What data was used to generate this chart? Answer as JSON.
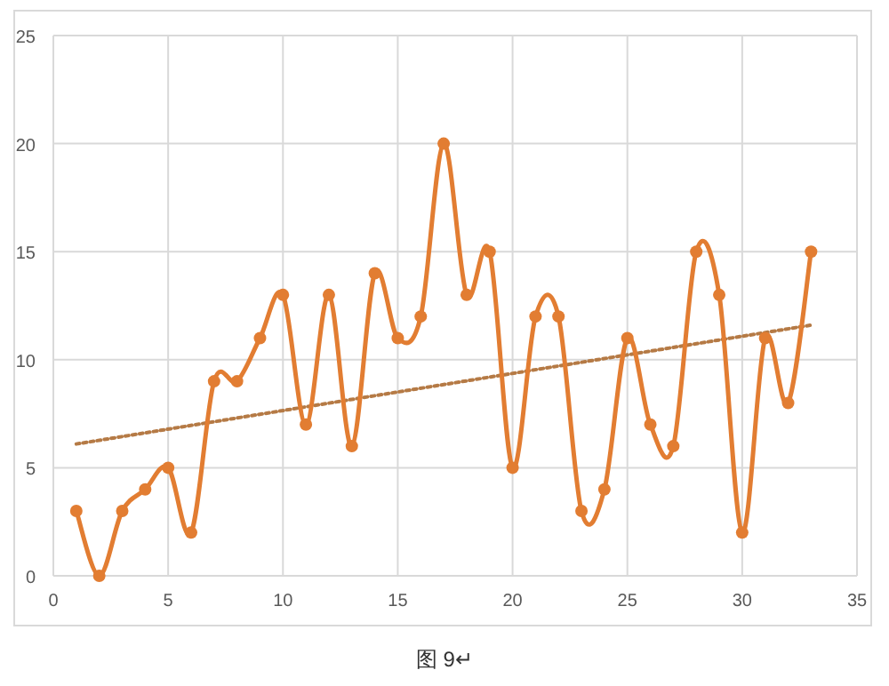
{
  "chart_data": {
    "type": "line",
    "annotations": [
      "图 9↵"
    ],
    "x": [
      1,
      2,
      3,
      4,
      5,
      6,
      7,
      8,
      9,
      10,
      11,
      12,
      13,
      14,
      15,
      16,
      17,
      18,
      19,
      20,
      21,
      22,
      23,
      24,
      25,
      26,
      27,
      28,
      29,
      30,
      31,
      32,
      33
    ],
    "series": [
      {
        "color": "#e27d32",
        "values": [
          3,
          0,
          3,
          4,
          5,
          2,
          9,
          9,
          11,
          13,
          7,
          13,
          6,
          14,
          11,
          12,
          20,
          13,
          15,
          5,
          12,
          12,
          3,
          4,
          11,
          7,
          6,
          15,
          13,
          2,
          11,
          8,
          15
        ]
      },
      {
        "color": "#b57a45",
        "x": [
          1,
          33
        ],
        "values": [
          6.1,
          11.6
        ],
        "line_style": "dotted",
        "marker": "none"
      }
    ],
    "xlim": [
      0,
      35
    ],
    "xticks": [
      0,
      5,
      10,
      15,
      20,
      25,
      30,
      35
    ],
    "ylim": [
      0,
      25
    ],
    "yticks": [
      0,
      5,
      10,
      15,
      20,
      25
    ],
    "grid": true,
    "marker": "circle",
    "line_style": "solid"
  }
}
